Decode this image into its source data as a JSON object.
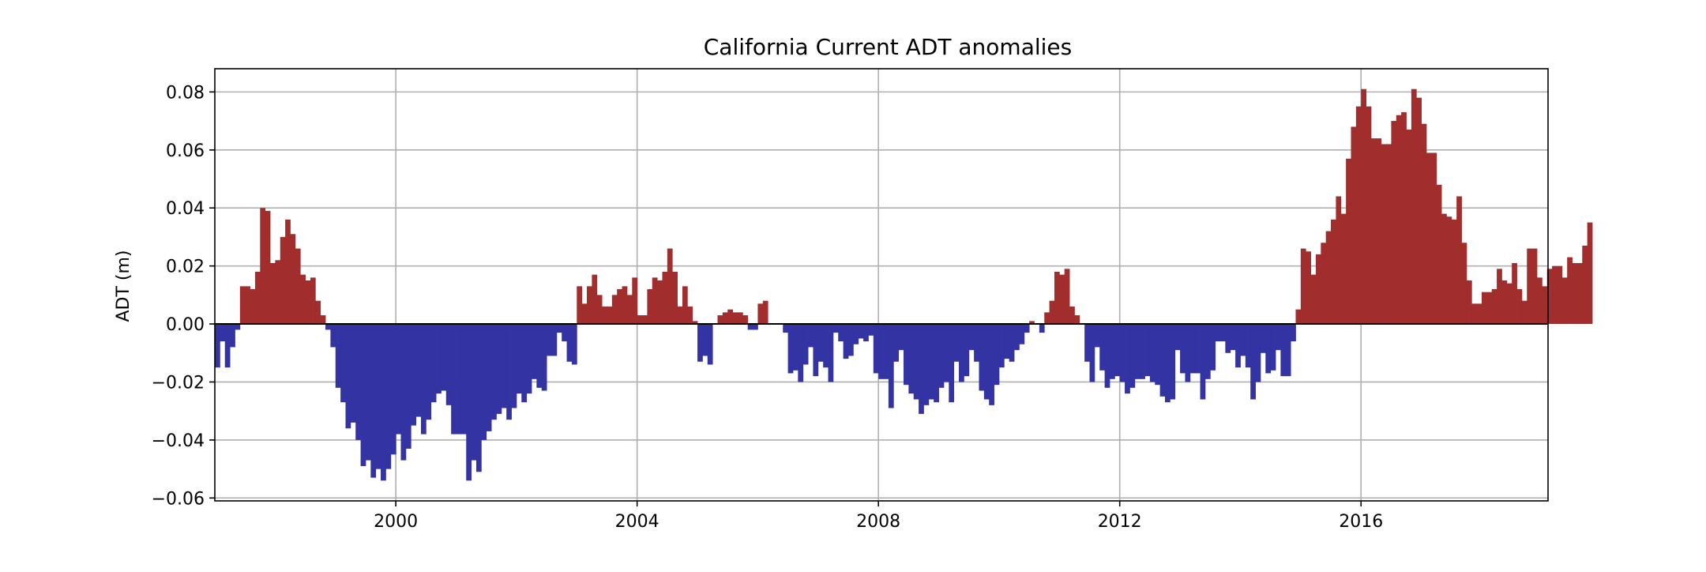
{
  "chart_data": {
    "type": "bar",
    "title": "California Current ADT anomalies",
    "xlabel": "",
    "ylabel": "ADT (m)",
    "xlim": [
      1997.0,
      2019.1
    ],
    "ylim": [
      -0.061,
      0.088
    ],
    "x_ticks": [
      2000,
      2004,
      2008,
      2012,
      2016
    ],
    "x_tick_labels": [
      "2000",
      "2004",
      "2008",
      "2012",
      "2016"
    ],
    "y_ticks": [
      -0.06,
      -0.04,
      -0.02,
      0.0,
      0.02,
      0.04,
      0.06,
      0.08
    ],
    "y_tick_labels": [
      "−0.06",
      "−0.04",
      "−0.02",
      "0.00",
      "0.02",
      "0.04",
      "0.06",
      "0.08"
    ],
    "grid": true,
    "start_year": 1997,
    "months_per_year": 12,
    "positive_color": "#a12d2d",
    "negative_color": "#3333a3",
    "zero_line_color": "#000000",
    "values": [
      -0.015,
      -0.006,
      -0.015,
      -0.008,
      -0.002,
      0.013,
      0.013,
      0.012,
      0.018,
      0.04,
      0.039,
      0.021,
      0.022,
      0.03,
      0.036,
      0.031,
      0.026,
      0.017,
      0.015,
      0.016,
      0.008,
      0.003,
      -0.002,
      -0.008,
      -0.022,
      -0.027,
      -0.036,
      -0.034,
      -0.04,
      -0.049,
      -0.047,
      -0.053,
      -0.05,
      -0.054,
      -0.05,
      -0.045,
      -0.038,
      -0.047,
      -0.043,
      -0.035,
      -0.032,
      -0.038,
      -0.033,
      -0.027,
      -0.024,
      -0.023,
      -0.028,
      -0.038,
      -0.038,
      -0.038,
      -0.054,
      -0.047,
      -0.051,
      -0.04,
      -0.037,
      -0.033,
      -0.031,
      -0.029,
      -0.033,
      -0.029,
      -0.024,
      -0.027,
      -0.024,
      -0.019,
      -0.022,
      -0.023,
      -0.011,
      -0.011,
      -0.003,
      -0.006,
      -0.013,
      -0.014,
      0.013,
      0.007,
      0.013,
      0.017,
      0.01,
      0.006,
      0.006,
      0.01,
      0.012,
      0.013,
      0.01,
      0.016,
      0.003,
      0.003,
      0.012,
      0.016,
      0.015,
      0.018,
      0.026,
      0.018,
      0.006,
      0.013,
      0.006,
      0.001,
      -0.013,
      -0.011,
      -0.014,
      0.0,
      0.003,
      0.004,
      0.005,
      0.004,
      0.004,
      0.003,
      -0.002,
      -0.002,
      0.007,
      0.008,
      0.0,
      0.0,
      0.0,
      -0.003,
      -0.017,
      -0.016,
      -0.02,
      -0.014,
      -0.008,
      -0.018,
      -0.013,
      -0.015,
      -0.02,
      -0.003,
      -0.006,
      -0.012,
      -0.011,
      -0.007,
      -0.005,
      -0.006,
      -0.004,
      -0.017,
      -0.019,
      -0.019,
      -0.029,
      -0.013,
      -0.009,
      -0.021,
      -0.024,
      -0.026,
      -0.031,
      -0.028,
      -0.026,
      -0.027,
      -0.022,
      -0.02,
      -0.027,
      -0.013,
      -0.02,
      -0.018,
      -0.009,
      -0.013,
      -0.023,
      -0.026,
      -0.028,
      -0.021,
      -0.015,
      -0.012,
      -0.013,
      -0.009,
      -0.007,
      -0.003,
      0.001,
      0.0,
      -0.003,
      0.004,
      0.008,
      0.018,
      0.017,
      0.019,
      0.006,
      0.003,
      0.0,
      -0.013,
      -0.02,
      -0.008,
      -0.016,
      -0.022,
      -0.019,
      -0.018,
      -0.02,
      -0.024,
      -0.022,
      -0.019,
      -0.019,
      -0.018,
      -0.02,
      -0.021,
      -0.025,
      -0.027,
      -0.026,
      -0.009,
      -0.017,
      -0.02,
      -0.017,
      -0.017,
      -0.026,
      -0.019,
      -0.016,
      -0.006,
      -0.006,
      -0.01,
      -0.009,
      -0.015,
      -0.011,
      -0.015,
      -0.026,
      -0.02,
      -0.01,
      -0.017,
      -0.016,
      -0.009,
      -0.018,
      -0.018,
      -0.006,
      0.005,
      0.026,
      0.025,
      0.017,
      0.024,
      0.028,
      0.032,
      0.036,
      0.044,
      0.038,
      0.057,
      0.068,
      0.075,
      0.081,
      0.075,
      0.064,
      0.064,
      0.062,
      0.062,
      0.07,
      0.072,
      0.073,
      0.067,
      0.081,
      0.078,
      0.069,
      0.059,
      0.059,
      0.048,
      0.038,
      0.037,
      0.036,
      0.044,
      0.028,
      0.015,
      0.007,
      0.007,
      0.011,
      0.011,
      0.012,
      0.019,
      0.015,
      0.014,
      0.021,
      0.012,
      0.008,
      0.026,
      0.026,
      0.016,
      0.013,
      0.019,
      0.02,
      0.02,
      0.016,
      0.023,
      0.021,
      0.021,
      0.027,
      0.035
    ]
  }
}
